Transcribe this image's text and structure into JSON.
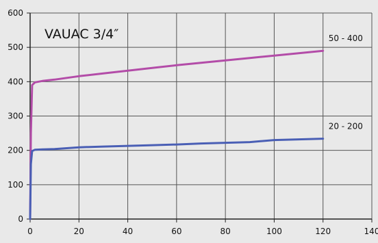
{
  "chart_data": {
    "type": "line",
    "title": "VAUAC 3/4″",
    "xlabel": "",
    "ylabel": "",
    "xlim": [
      0,
      140
    ],
    "ylim": [
      0,
      600
    ],
    "x_ticks": [
      0,
      20,
      40,
      60,
      80,
      100,
      120,
      140
    ],
    "y_ticks": [
      0,
      100,
      200,
      300,
      400,
      500,
      600
    ],
    "grid": true,
    "colors": {
      "background": "#e9e9e9",
      "grid": "#555555",
      "axis": "#222222"
    },
    "series": [
      {
        "name": "50 - 400",
        "color": "#b34ca8",
        "x": [
          0,
          0.3,
          0.8,
          2,
          5,
          10,
          20,
          30,
          40,
          50,
          60,
          70,
          80,
          90,
          100,
          110,
          120
        ],
        "y": [
          0,
          250,
          390,
          398,
          402,
          406,
          416,
          424,
          432,
          440,
          448,
          455,
          462,
          469,
          476,
          483,
          490
        ]
      },
      {
        "name": "20 - 200",
        "color": "#4a5fb5",
        "x": [
          0,
          0.3,
          0.8,
          2,
          5,
          10,
          20,
          30,
          40,
          50,
          60,
          70,
          80,
          90,
          100,
          110,
          120
        ],
        "y": [
          0,
          160,
          198,
          202,
          203,
          204,
          209,
          211,
          213,
          215,
          217,
          220,
          222,
          224,
          230,
          232,
          234
        ]
      }
    ]
  }
}
